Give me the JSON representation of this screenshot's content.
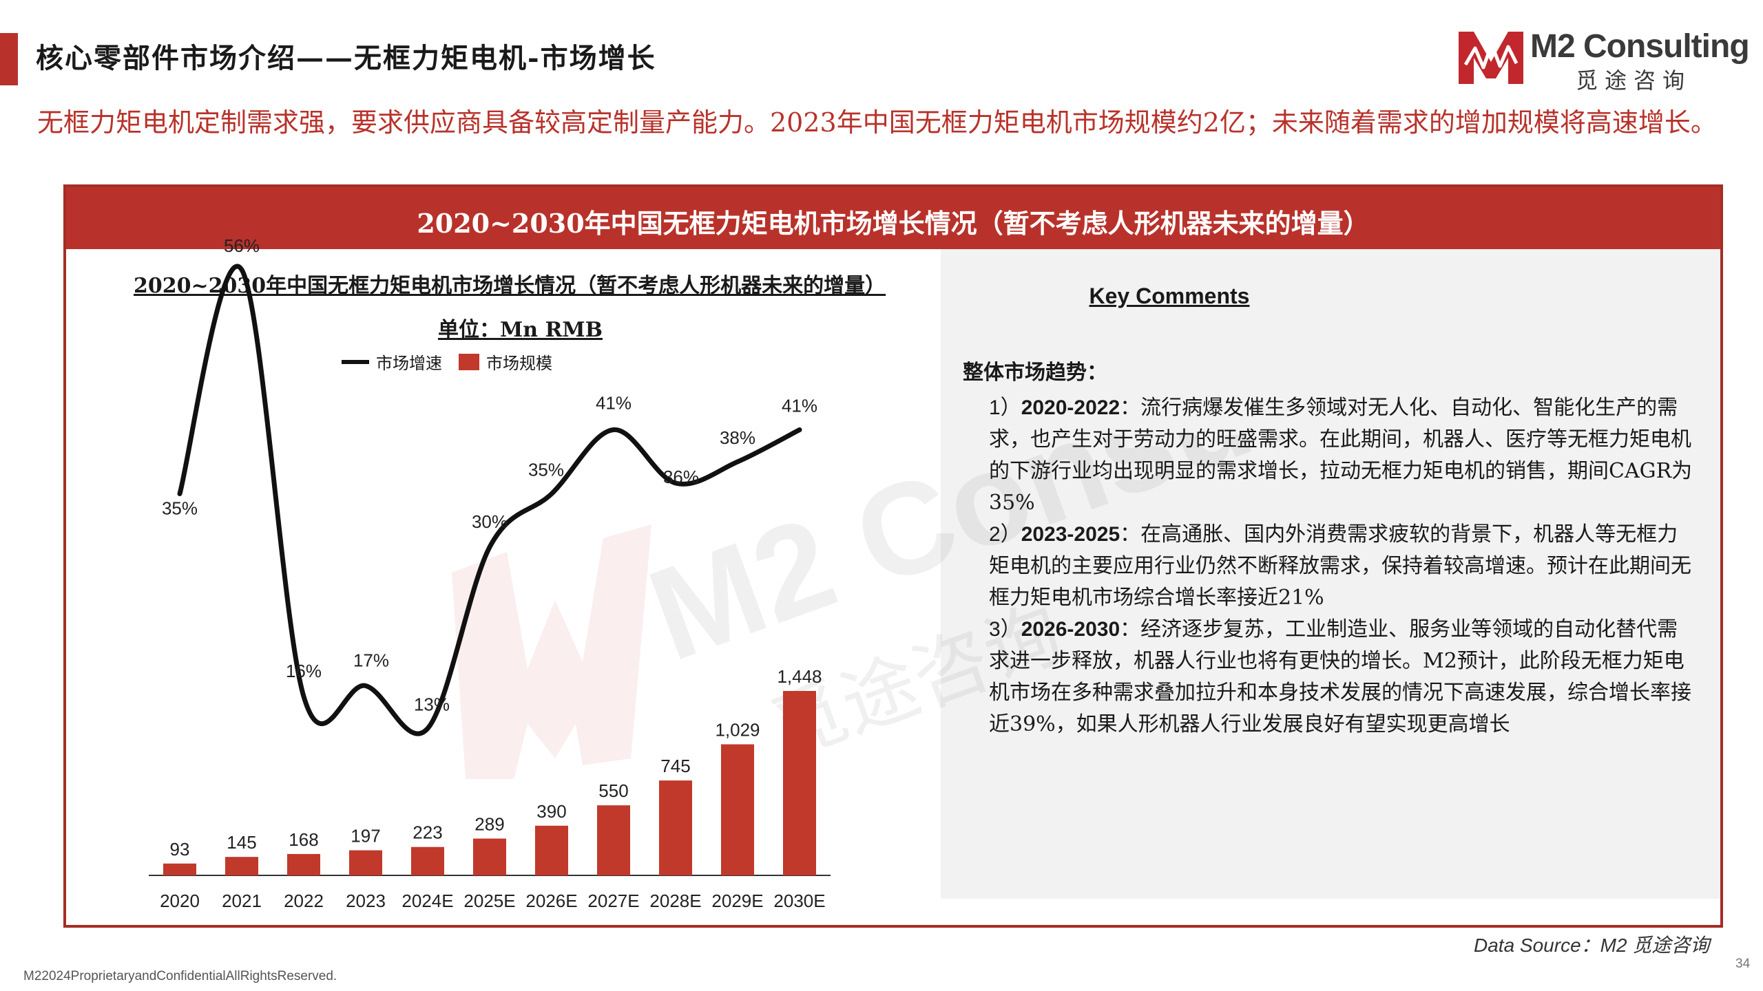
{
  "header": {
    "title": "核心零部件市场介绍——无框力矩电机-市场增长",
    "accent_color": "#b8322b"
  },
  "logo": {
    "name": "M2 Consulting",
    "chinese": "觅途咨询"
  },
  "headline": "无框力矩电机定制需求强，要求供应商具备较高定制量产能力。2023年中国无框力矩电机市场规模约2亿；未来随着需求的增加规模将高速增长。",
  "panel": {
    "header": "2020~2030年中国无框力矩电机市场增长情况（暂不考虑人形机器未来的增量）"
  },
  "chart_data": {
    "type": "bar",
    "title": "2020~2030年中国无框力矩电机市场增长情况（暂不考虑人形机器未来的增量）",
    "unit": "单位：Mn RMB",
    "categories": [
      "2020",
      "2021",
      "2022",
      "2023",
      "2024E",
      "2025E",
      "2026E",
      "2027E",
      "2028E",
      "2029E",
      "2030E"
    ],
    "series": [
      {
        "name": "市场规模",
        "type": "bar",
        "color": "#c0392b",
        "values": [
          93,
          145,
          168,
          197,
          223,
          289,
          390,
          550,
          745,
          1029,
          1448
        ],
        "labels": [
          "93",
          "145",
          "168",
          "197",
          "223",
          "289",
          "390",
          "550",
          "745",
          "1,029",
          "1,448"
        ]
      },
      {
        "name": "市场增速",
        "type": "line",
        "color": "#111111",
        "values": [
          35,
          56,
          16,
          17,
          13,
          30,
          35,
          41,
          36,
          38,
          41
        ],
        "labels": [
          "35%",
          "56%",
          "16%",
          "17%",
          "13%",
          "30%",
          "35%",
          "41%",
          "36%",
          "38%",
          "41%"
        ]
      }
    ],
    "legend": "top"
  },
  "comments": {
    "title": "Key Comments",
    "heading": "整体市场趋势：",
    "items": [
      {
        "num": "1）",
        "period": "2020-2022",
        "text": "：流行病爆发催生多领域对无人化、自动化、智能化生产的需求，也产生对于劳动力的旺盛需求。在此期间，机器人、医疗等无框力矩电机的下游行业均出现明显的需求增长，拉动无框力矩电机的销售，期间CAGR为35%"
      },
      {
        "num": "2）",
        "period": "2023-2025",
        "text": "：在高通胀、国内外消费需求疲软的背景下，机器人等无框力矩电机的主要应用行业仍然不断释放需求，保持着较高增速。预计在此期间无框力矩电机市场综合增长率接近21%"
      },
      {
        "num": "3）",
        "period": "2026-2030",
        "text": "：经济逐步复苏，工业制造业、服务业等领域的自动化替代需求进一步释放，机器人行业也将有更快的增长。M2预计，此阶段无框力矩电机市场在多种需求叠加拉升和本身技术发展的情况下高速发展，综合增长率接近39%，如果人形机器人行业发展良好有望实现更高增长"
      }
    ]
  },
  "footer": {
    "source": "Data Source：M2 觅途咨询",
    "copyright": "M22024ProprietaryandConfidentialAllRightsReserved.",
    "page": "34"
  }
}
